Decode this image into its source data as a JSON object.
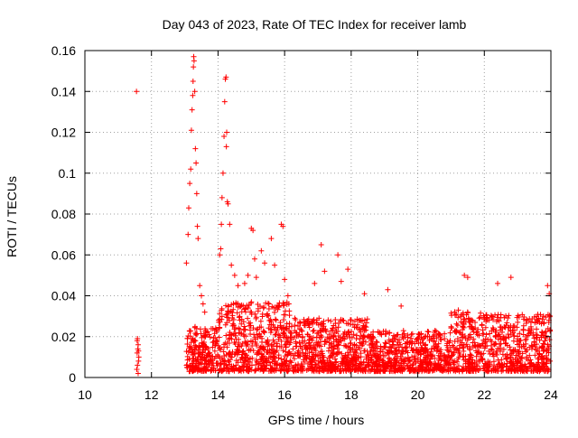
{
  "chart_data": {
    "type": "scatter",
    "title": "Day 043 of 2023, Rate Of TEC Index for receiver lamb",
    "xlabel": "GPS time / hours",
    "ylabel": "ROTI / TECUs",
    "xlim": [
      10,
      24
    ],
    "ylim": [
      0,
      0.16
    ],
    "x_ticks": [
      "10",
      "12",
      "14",
      "16",
      "18",
      "20",
      "22",
      "24"
    ],
    "y_ticks": [
      "0",
      "0.02",
      "0.04",
      "0.06",
      "0.08",
      "0.1",
      "0.12",
      "0.14",
      "0.16"
    ],
    "grid": true,
    "marker": "+",
    "color": "#ff0000",
    "series": [
      {
        "points": [
          [
            11.55,
            0.14
          ],
          [
            11.58,
            0.019
          ],
          [
            11.6,
            0.016
          ],
          [
            11.57,
            0.012
          ],
          [
            11.61,
            0.008
          ],
          [
            11.56,
            0.004
          ],
          [
            11.59,
            0.014
          ],
          [
            11.62,
            0.01
          ],
          [
            11.58,
            0.006
          ],
          [
            11.6,
            0.002
          ],
          [
            11.57,
            0.018
          ],
          [
            11.61,
            0.013
          ],
          [
            13.05,
            0.056
          ],
          [
            13.1,
            0.07
          ],
          [
            13.12,
            0.083
          ],
          [
            13.15,
            0.095
          ],
          [
            13.18,
            0.102
          ],
          [
            13.2,
            0.121
          ],
          [
            13.22,
            0.131
          ],
          [
            13.24,
            0.138
          ],
          [
            13.25,
            0.145
          ],
          [
            13.26,
            0.152
          ],
          [
            13.27,
            0.157
          ],
          [
            13.28,
            0.155
          ],
          [
            13.3,
            0.14
          ],
          [
            13.32,
            0.112
          ],
          [
            13.34,
            0.105
          ],
          [
            13.36,
            0.09
          ],
          [
            13.38,
            0.074
          ],
          [
            13.4,
            0.068
          ],
          [
            13.45,
            0.045
          ],
          [
            13.5,
            0.04
          ],
          [
            13.55,
            0.036
          ],
          [
            13.6,
            0.032
          ],
          [
            14.05,
            0.06
          ],
          [
            14.08,
            0.063
          ],
          [
            14.1,
            0.075
          ],
          [
            14.12,
            0.088
          ],
          [
            14.15,
            0.1
          ],
          [
            14.18,
            0.118
          ],
          [
            14.2,
            0.135
          ],
          [
            14.22,
            0.146
          ],
          [
            14.24,
            0.147
          ],
          [
            14.25,
            0.113
          ],
          [
            14.26,
            0.12
          ],
          [
            14.28,
            0.086
          ],
          [
            14.3,
            0.085
          ],
          [
            14.35,
            0.075
          ],
          [
            14.4,
            0.055
          ],
          [
            14.5,
            0.05
          ],
          [
            14.6,
            0.045
          ],
          [
            14.8,
            0.046
          ],
          [
            14.9,
            0.05
          ],
          [
            15.0,
            0.073
          ],
          [
            15.05,
            0.072
          ],
          [
            15.1,
            0.058
          ],
          [
            15.15,
            0.049
          ],
          [
            15.3,
            0.062
          ],
          [
            15.4,
            0.056
          ],
          [
            15.6,
            0.068
          ],
          [
            15.7,
            0.055
          ],
          [
            15.9,
            0.075
          ],
          [
            15.95,
            0.074
          ],
          [
            16.0,
            0.048
          ],
          [
            16.1,
            0.04
          ],
          [
            16.9,
            0.046
          ],
          [
            17.1,
            0.065
          ],
          [
            17.2,
            0.052
          ],
          [
            17.6,
            0.06
          ],
          [
            17.7,
            0.047
          ],
          [
            17.9,
            0.053
          ],
          [
            18.4,
            0.041
          ],
          [
            19.1,
            0.043
          ],
          [
            19.5,
            0.035
          ],
          [
            21.4,
            0.05
          ],
          [
            21.5,
            0.049
          ],
          [
            22.4,
            0.046
          ],
          [
            22.8,
            0.049
          ],
          [
            23.9,
            0.045
          ],
          [
            23.95,
            0.041
          ]
        ]
      }
    ]
  }
}
